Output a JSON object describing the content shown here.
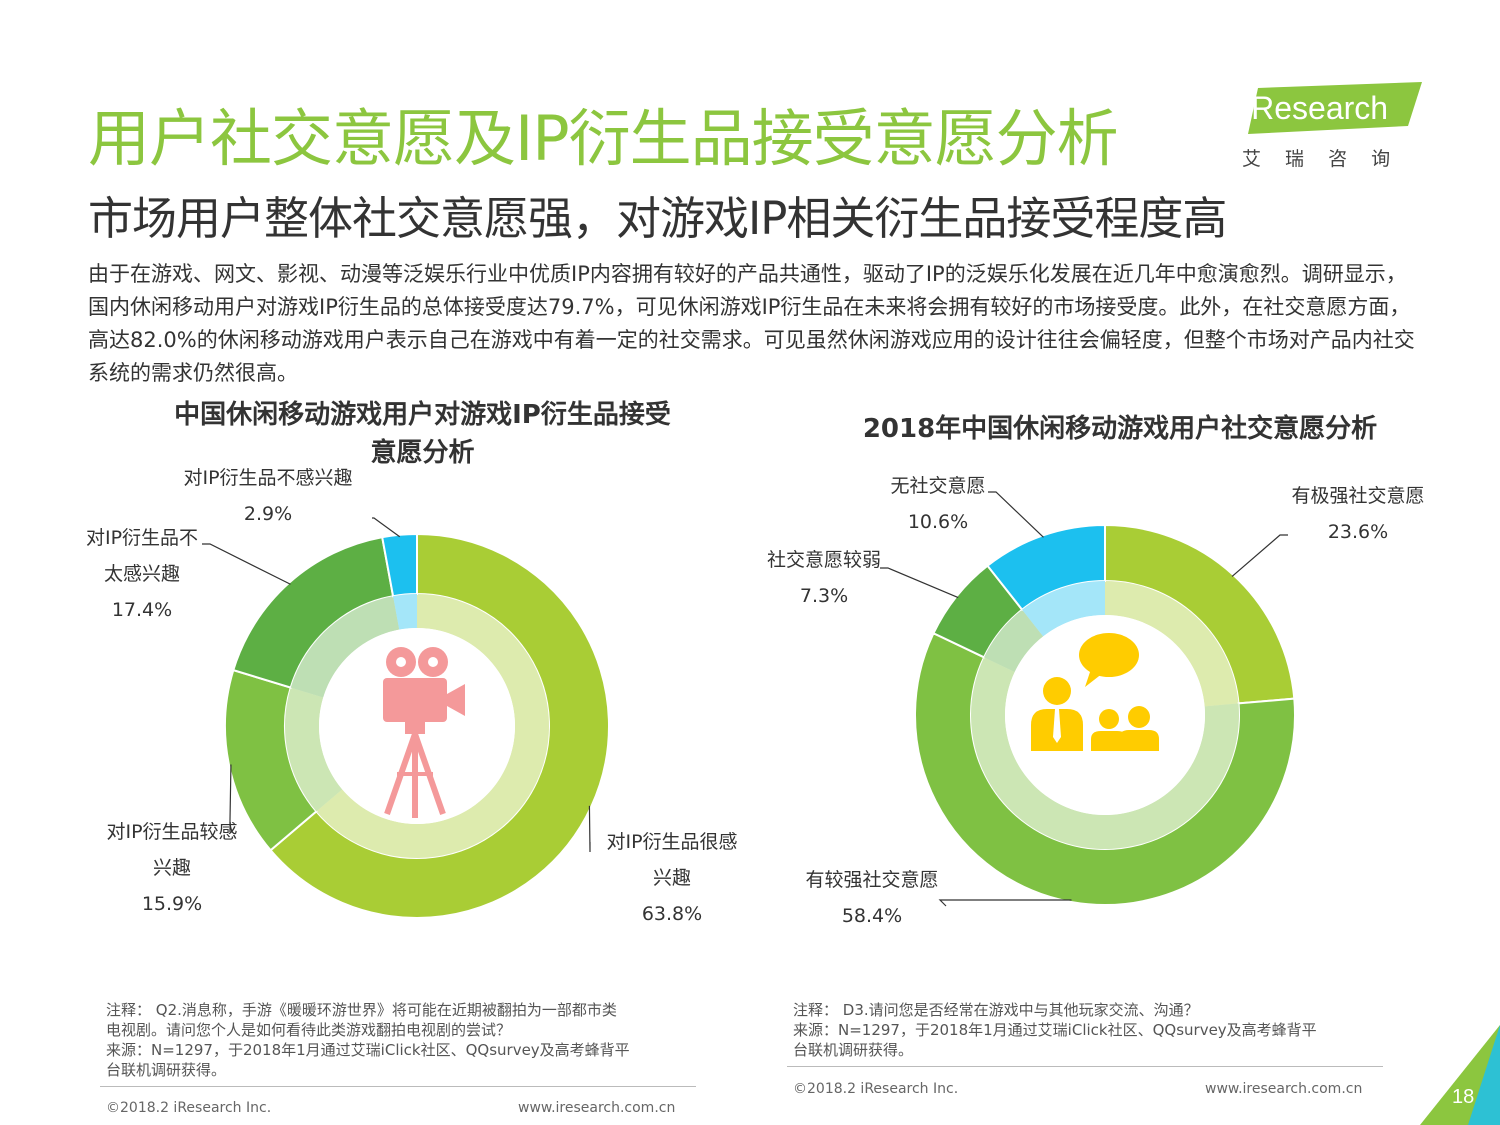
{
  "header": {
    "title": "用户社交意愿及IP衍生品接受意愿分析",
    "subtitle": "市场用户整体社交意愿强，对游戏IP相关衍生品接受程度高",
    "logo_text": "iResearch",
    "logo_cn": "艾 瑞 咨 询"
  },
  "intro": "由于在游戏、网文、影视、动漫等泛娱乐行业中优质IP内容拥有较好的产品共通性，驱动了IP的泛娱乐化发展在近几年中愈演愈烈。调研显示，国内休闲移动用户对游戏IP衍生品的总体接受度达79.7%，可见休闲游戏IP衍生品在未来将会拥有较好的市场接受度。此外，在社交意愿方面，高达82.0%的休闲移动游戏用户表示自己在游戏中有着一定的社交需求。可见虽然休闲游戏应用的设计往往会偏轻度，但整个市场对产品内社交系统的需求仍然很高。",
  "colors": {
    "brand_green": "#8cc63f",
    "accent_cyan": "#1cc0ef"
  },
  "chart_data": [
    {
      "type": "pie",
      "title": "中国休闲移动游戏用户对游戏IP衍生品接受意愿分析",
      "center_icon": "movie-camera-icon",
      "categories": [
        "对IP衍生品很感兴趣",
        "对IP衍生品较感兴趣",
        "对IP衍生品不太感兴趣",
        "对IP衍生品不感兴趣"
      ],
      "values": [
        63.8,
        15.9,
        17.4,
        2.9
      ],
      "value_labels": [
        "63.8%",
        "15.9%",
        "17.4%",
        "2.9%"
      ],
      "colors": [
        "#a9cd35",
        "#7fc143",
        "#5daf44",
        "#1cc0ef"
      ],
      "label_lines": [
        [
          "对IP衍生品很感",
          "兴趣"
        ],
        [
          "对IP衍生品较感",
          "兴趣"
        ],
        [
          "对IP衍生品不",
          "太感兴趣"
        ],
        [
          "对IP衍生品不感兴趣"
        ]
      ]
    },
    {
      "type": "pie",
      "title": "2018年中国休闲移动游戏用户社交意愿分析",
      "center_icon": "people-chat-icon",
      "categories": [
        "有极强社交意愿",
        "有较强社交意愿",
        "社交意愿较弱",
        "无社交意愿"
      ],
      "values": [
        23.6,
        58.4,
        7.3,
        10.6
      ],
      "value_labels": [
        "23.6%",
        "58.4%",
        "7.3%",
        "10.6%"
      ],
      "colors": [
        "#a9cd35",
        "#7fc143",
        "#5daf44",
        "#1cc0ef"
      ],
      "label_lines": [
        [
          "有极强社交意愿"
        ],
        [
          "有较强社交意愿"
        ],
        [
          "社交意愿较弱"
        ],
        [
          "无社交意愿"
        ]
      ]
    }
  ],
  "notes": {
    "left": [
      "注释： Q2.消息称，手游《暖暖环游世界》将可能在近期被翻拍为一部都市类",
      "电视剧。请问您个人是如何看待此类游戏翻拍电视剧的尝试？",
      "来源：N=1297，于2018年1月通过艾瑞iClick社区、QQsurvey及高考蜂背平",
      "台联机调研获得。"
    ],
    "right": [
      "注释： D3.请问您是否经常在游戏中与其他玩家交流、沟通？",
      "来源：N=1297，于2018年1月通过艾瑞iClick社区、QQsurvey及高考蜂背平",
      "台联机调研获得。"
    ]
  },
  "footer": {
    "copyright": "©2018.2 iResearch Inc.",
    "website": "www.iresearch.com.cn",
    "page_number": "18"
  }
}
